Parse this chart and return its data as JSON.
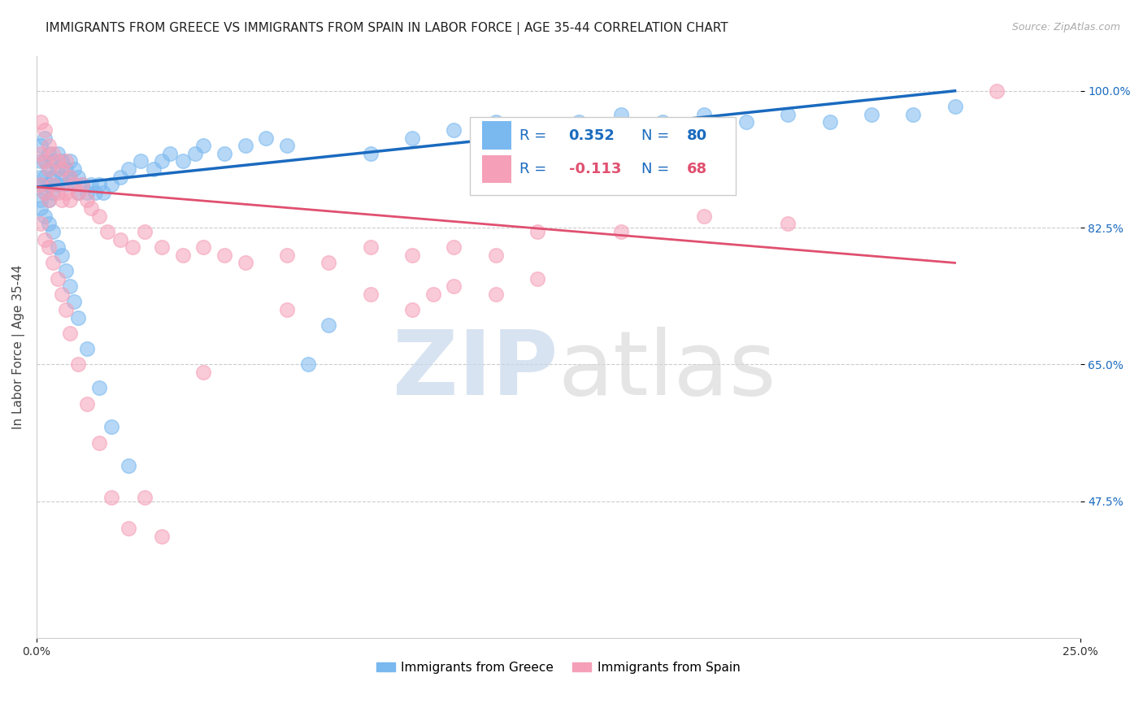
{
  "title": "IMMIGRANTS FROM GREECE VS IMMIGRANTS FROM SPAIN IN LABOR FORCE | AGE 35-44 CORRELATION CHART",
  "source": "Source: ZipAtlas.com",
  "ylabel": "In Labor Force | Age 35-44",
  "legend_labels": [
    "Immigrants from Greece",
    "Immigrants from Spain"
  ],
  "r_greece": 0.352,
  "n_greece": 80,
  "r_spain": -0.113,
  "n_spain": 68,
  "color_greece": "#7ab8f0",
  "color_spain": "#f5a0b8",
  "line_color_greece": "#1a6abf",
  "line_color_spain": "#e05070",
  "xmin": 0.0,
  "xmax": 0.25,
  "ymin": 0.3,
  "ymax": 1.045,
  "background_color": "#ffffff",
  "grid_color": "#cccccc",
  "title_fontsize": 11,
  "axis_label_fontsize": 11,
  "tick_fontsize": 10,
  "greece_x": [
    0.001,
    0.001,
    0.001,
    0.001,
    0.001,
    0.002,
    0.002,
    0.002,
    0.002,
    0.003,
    0.003,
    0.003,
    0.003,
    0.004,
    0.004,
    0.004,
    0.005,
    0.005,
    0.005,
    0.006,
    0.006,
    0.007,
    0.007,
    0.008,
    0.008,
    0.009,
    0.009,
    0.01,
    0.01,
    0.011,
    0.012,
    0.013,
    0.014,
    0.015,
    0.016,
    0.018,
    0.02,
    0.022,
    0.025,
    0.028,
    0.03,
    0.032,
    0.035,
    0.038,
    0.04,
    0.045,
    0.05,
    0.055,
    0.06,
    0.065,
    0.07,
    0.08,
    0.09,
    0.1,
    0.11,
    0.12,
    0.13,
    0.14,
    0.15,
    0.16,
    0.17,
    0.18,
    0.19,
    0.2,
    0.21,
    0.22,
    0.001,
    0.002,
    0.003,
    0.004,
    0.005,
    0.006,
    0.007,
    0.008,
    0.009,
    0.01,
    0.012,
    0.015,
    0.018,
    0.022
  ],
  "greece_y": [
    0.93,
    0.91,
    0.89,
    0.88,
    0.86,
    0.94,
    0.91,
    0.89,
    0.87,
    0.92,
    0.9,
    0.88,
    0.86,
    0.91,
    0.89,
    0.87,
    0.92,
    0.9,
    0.88,
    0.91,
    0.89,
    0.9,
    0.88,
    0.91,
    0.89,
    0.9,
    0.88,
    0.89,
    0.87,
    0.88,
    0.87,
    0.88,
    0.87,
    0.88,
    0.87,
    0.88,
    0.89,
    0.9,
    0.91,
    0.9,
    0.91,
    0.92,
    0.91,
    0.92,
    0.93,
    0.92,
    0.93,
    0.94,
    0.93,
    0.65,
    0.7,
    0.92,
    0.94,
    0.95,
    0.96,
    0.95,
    0.96,
    0.97,
    0.96,
    0.97,
    0.96,
    0.97,
    0.96,
    0.97,
    0.97,
    0.98,
    0.85,
    0.84,
    0.83,
    0.82,
    0.8,
    0.79,
    0.77,
    0.75,
    0.73,
    0.71,
    0.67,
    0.62,
    0.57,
    0.52
  ],
  "spain_x": [
    0.001,
    0.001,
    0.001,
    0.002,
    0.002,
    0.002,
    0.003,
    0.003,
    0.003,
    0.004,
    0.004,
    0.005,
    0.005,
    0.006,
    0.006,
    0.007,
    0.007,
    0.008,
    0.008,
    0.009,
    0.01,
    0.011,
    0.012,
    0.013,
    0.015,
    0.017,
    0.02,
    0.023,
    0.026,
    0.03,
    0.035,
    0.04,
    0.045,
    0.05,
    0.06,
    0.07,
    0.08,
    0.09,
    0.1,
    0.11,
    0.12,
    0.14,
    0.16,
    0.18,
    0.23,
    0.001,
    0.002,
    0.003,
    0.004,
    0.005,
    0.006,
    0.007,
    0.008,
    0.01,
    0.012,
    0.015,
    0.018,
    0.022,
    0.026,
    0.03,
    0.04,
    0.06,
    0.08,
    0.09,
    0.095,
    0.1,
    0.11,
    0.12
  ],
  "spain_y": [
    0.96,
    0.92,
    0.88,
    0.95,
    0.91,
    0.87,
    0.93,
    0.9,
    0.86,
    0.92,
    0.88,
    0.91,
    0.87,
    0.9,
    0.86,
    0.91,
    0.87,
    0.89,
    0.86,
    0.88,
    0.87,
    0.88,
    0.86,
    0.85,
    0.84,
    0.82,
    0.81,
    0.8,
    0.82,
    0.8,
    0.79,
    0.8,
    0.79,
    0.78,
    0.79,
    0.78,
    0.8,
    0.79,
    0.8,
    0.79,
    0.82,
    0.82,
    0.84,
    0.83,
    1.0,
    0.83,
    0.81,
    0.8,
    0.78,
    0.76,
    0.74,
    0.72,
    0.69,
    0.65,
    0.6,
    0.55,
    0.48,
    0.44,
    0.48,
    0.43,
    0.64,
    0.72,
    0.74,
    0.72,
    0.74,
    0.75,
    0.74,
    0.76
  ]
}
